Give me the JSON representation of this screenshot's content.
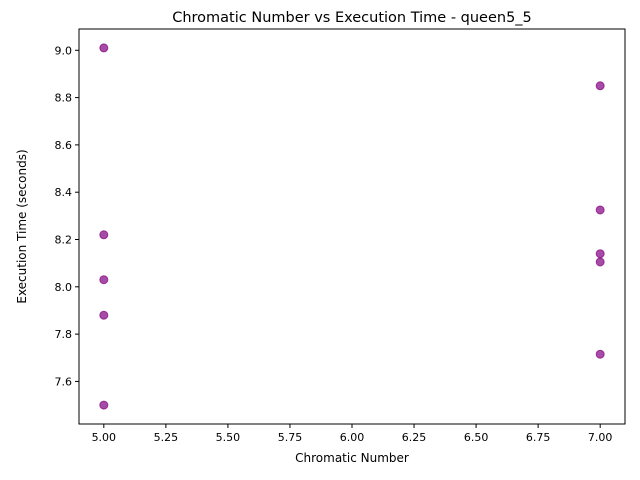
{
  "chart_data": {
    "type": "scatter",
    "title": "Chromatic Number vs Execution Time - queen5_5",
    "xlabel": "Chromatic Number",
    "ylabel": "Execution Time (seconds)",
    "xlim": [
      4.9,
      7.1
    ],
    "ylim": [
      7.42,
      9.09
    ],
    "xticks": [
      "5.00",
      "5.25",
      "5.50",
      "5.75",
      "6.00",
      "6.25",
      "6.50",
      "6.75",
      "7.00"
    ],
    "yticks": [
      "7.6",
      "7.8",
      "8.0",
      "8.2",
      "8.4",
      "8.6",
      "8.8",
      "9.0"
    ],
    "grid": false,
    "legend": "none",
    "color": "#800080",
    "points": [
      {
        "x": 5,
        "y": 9.01
      },
      {
        "x": 5,
        "y": 8.22
      },
      {
        "x": 5,
        "y": 8.03
      },
      {
        "x": 5,
        "y": 7.88
      },
      {
        "x": 5,
        "y": 7.5
      },
      {
        "x": 7,
        "y": 8.85
      },
      {
        "x": 7,
        "y": 8.325
      },
      {
        "x": 7,
        "y": 8.14
      },
      {
        "x": 7,
        "y": 8.105
      },
      {
        "x": 7,
        "y": 7.715
      }
    ]
  }
}
